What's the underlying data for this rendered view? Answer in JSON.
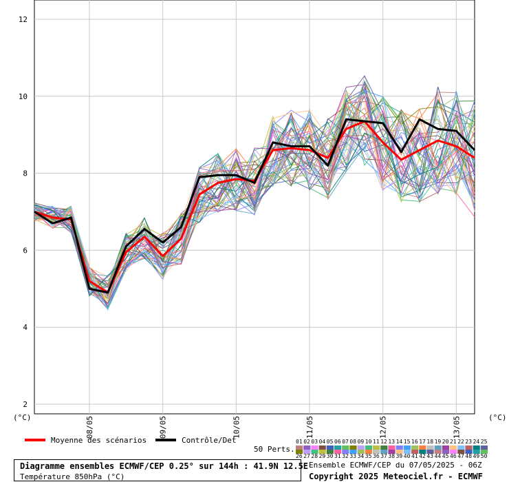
{
  "chart_data": {
    "type": "line",
    "title": "Diagramme ensembles ECMWF/CEP 0.25° sur 144h : 41.9N 12.5E",
    "subtitle": "Température 850hPa (°C)",
    "run_info": "Ensemble ECMWF/CEP du 07/05/2025 - 06Z",
    "copyright": "Copyright 2025 Meteociel.fr - ECMWF",
    "y_unit_left": "(°C)",
    "y_unit_right": "(°C)",
    "ylim": [
      1.75,
      12.5
    ],
    "y_ticks": [
      2,
      4,
      6,
      8,
      10,
      12
    ],
    "x_range": [
      0,
      24
    ],
    "x_unit_note": "6-hour steps from 07/05 06Z",
    "date_ticks": [
      {
        "label": "08/05",
        "x": 3
      },
      {
        "label": "09/05",
        "x": 7
      },
      {
        "label": "10/05",
        "x": 11
      },
      {
        "label": "11/05",
        "x": 15
      },
      {
        "label": "12/05",
        "x": 19
      },
      {
        "label": "13/05",
        "x": 23
      }
    ],
    "grid": true,
    "legend": {
      "mean_label": "Moyenne des scénarios",
      "control_label": "Contrôle/Det",
      "perts_label": "50 Perts.",
      "member_numbers_top": [
        "01",
        "02",
        "03",
        "04",
        "05",
        "06",
        "07",
        "08",
        "09",
        "10",
        "11",
        "12",
        "13",
        "14",
        "15",
        "16",
        "17",
        "18",
        "19",
        "20",
        "21",
        "22",
        "23",
        "24",
        "25"
      ],
      "member_numbers_bottom": [
        "26",
        "27",
        "28",
        "29",
        "30",
        "31",
        "32",
        "33",
        "34",
        "35",
        "36",
        "37",
        "38",
        "39",
        "40",
        "41",
        "42",
        "43",
        "44",
        "45",
        "46",
        "47",
        "48",
        "49",
        "50"
      ]
    },
    "series": [
      {
        "name": "Moyenne des scénarios",
        "color": "#ff0000",
        "x": [
          0,
          1,
          2,
          3,
          4,
          5,
          6,
          7,
          8,
          9,
          10,
          11,
          12,
          13,
          14,
          15,
          16,
          17,
          18,
          19,
          20,
          21,
          22,
          23,
          24
        ],
        "values": [
          7.0,
          6.85,
          6.8,
          5.2,
          4.9,
          5.95,
          6.35,
          5.85,
          6.3,
          7.45,
          7.75,
          7.85,
          7.8,
          8.6,
          8.65,
          8.6,
          8.4,
          9.15,
          9.35,
          8.8,
          8.35,
          8.6,
          8.85,
          8.7,
          8.4
        ]
      },
      {
        "name": "Contrôle/Det",
        "color": "#000000",
        "x": [
          0,
          1,
          2,
          3,
          4,
          5,
          6,
          7,
          8,
          9,
          10,
          11,
          12,
          13,
          14,
          15,
          16,
          17,
          18,
          19,
          20,
          21,
          22,
          23,
          24
        ],
        "values": [
          7.0,
          6.7,
          6.85,
          5.0,
          4.9,
          6.1,
          6.55,
          6.2,
          6.6,
          7.9,
          7.95,
          7.95,
          7.75,
          8.8,
          8.7,
          8.7,
          8.2,
          9.4,
          9.35,
          9.3,
          8.55,
          9.4,
          9.15,
          9.1,
          8.6
        ]
      }
    ],
    "member_colors": [
      "#c08080",
      "#9060c0",
      "#ff80ff",
      "#805040",
      "#4060c0",
      "#20a0a0",
      "#60c060",
      "#808000",
      "#c0a0ff",
      "#40c080",
      "#c0c040",
      "#408040",
      "#ff60a0",
      "#8080ff",
      "#40a0ff",
      "#a0c060",
      "#ff8040",
      "#c0c0c0",
      "#60a0c0",
      "#a040a0",
      "#ffc080",
      "#80c0ff",
      "#c06060",
      "#008080",
      "#6060a0"
    ]
  }
}
